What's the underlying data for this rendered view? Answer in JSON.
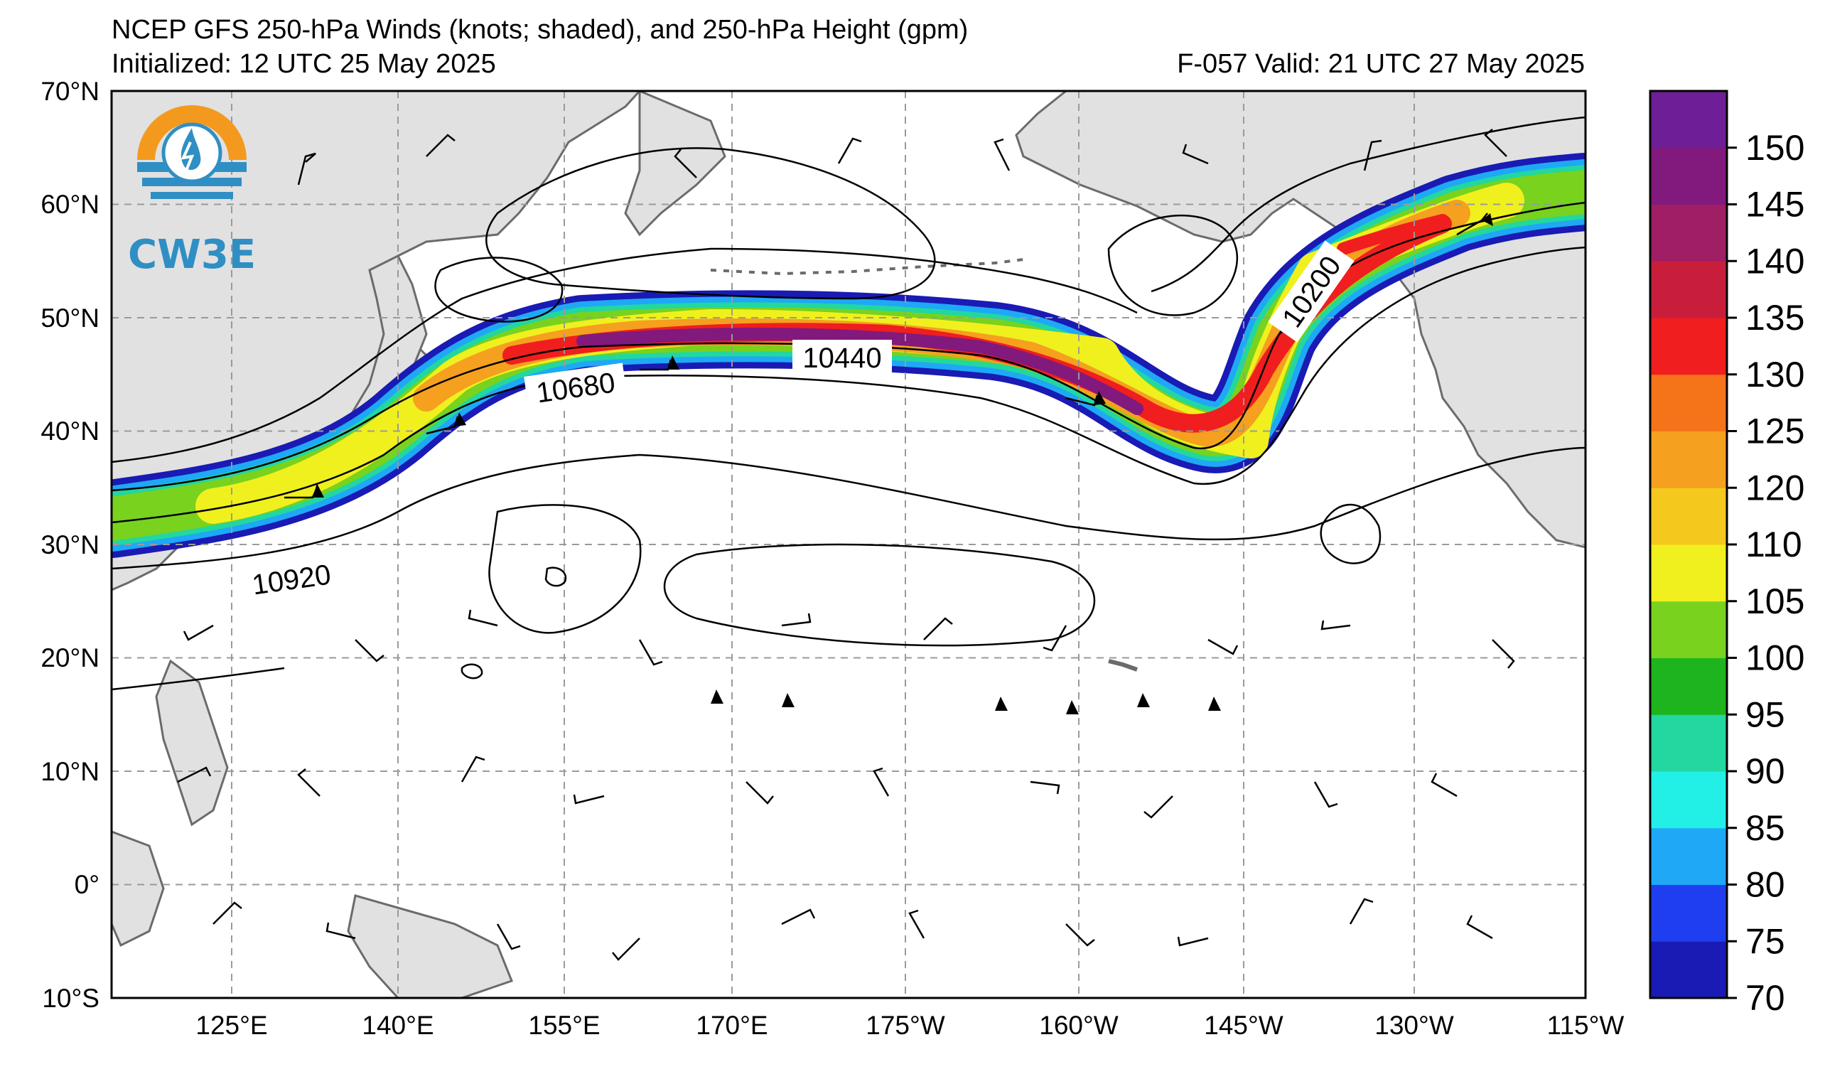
{
  "header": {
    "title": "NCEP GFS 250-hPa Winds (knots; shaded), and 250-hPa Height (gpm)",
    "initialized": "Initialized: 12 UTC 25 May 2025",
    "valid": "F-057  Valid: 21 UTC 27 May 2025"
  },
  "logo": {
    "text": "CW3E",
    "icon": "cw3e-logo-icon"
  },
  "map": {
    "lat_range": [
      -10,
      70
    ],
    "lon_range": [
      110,
      245
    ],
    "lat_ticks": [
      "70°N",
      "60°N",
      "50°N",
      "40°N",
      "30°N",
      "20°N",
      "10°N",
      "0°",
      "10°S"
    ],
    "lon_ticks": [
      "125°E",
      "140°E",
      "155°E",
      "170°E",
      "175°W",
      "160°W",
      "145°W",
      "130°W",
      "115°W"
    ],
    "contour_labels": [
      "10440",
      "10680",
      "10920",
      "10200"
    ],
    "colors": {
      "land": "#e1e1e1",
      "coast": "#6b6b6b",
      "grid": "#9a9a9a",
      "contour": "#000000"
    }
  },
  "colorbar": {
    "labels": [
      "70",
      "75",
      "80",
      "85",
      "90",
      "95",
      "100",
      "105",
      "110",
      "120",
      "125",
      "130",
      "135",
      "140",
      "145",
      "150"
    ],
    "colors": [
      "#1a1ab4",
      "#1f3ef0",
      "#1ea8f5",
      "#22f0e6",
      "#22d7a0",
      "#1eb41e",
      "#78d21e",
      "#f0f01e",
      "#f5c81e",
      "#f5a01e",
      "#f57319",
      "#f01e1e",
      "#c81e3c",
      "#a01e64",
      "#82197d",
      "#6e1e96"
    ]
  }
}
